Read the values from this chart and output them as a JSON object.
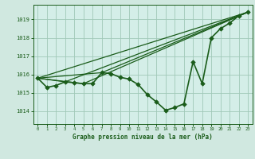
{
  "bg_color": "#d0e8e0",
  "plot_bg_color": "#d4eee8",
  "grid_color": "#a0c8b8",
  "line_color": "#1a5c1a",
  "title": "Graphe pression niveau de la mer (hPa)",
  "xlim": [
    -0.5,
    23.5
  ],
  "ylim": [
    1013.3,
    1019.8
  ],
  "yticks": [
    1014,
    1015,
    1016,
    1017,
    1018,
    1019
  ],
  "xticks": [
    0,
    1,
    2,
    3,
    4,
    5,
    6,
    7,
    8,
    9,
    10,
    11,
    12,
    13,
    14,
    15,
    16,
    17,
    18,
    19,
    20,
    21,
    22,
    23
  ],
  "series": [
    {
      "x": [
        0,
        1,
        2,
        3,
        4,
        5,
        6,
        7,
        8,
        9,
        10,
        11,
        12,
        13,
        14,
        15,
        16,
        17,
        18,
        19,
        20,
        21,
        22,
        23
      ],
      "y": [
        1015.8,
        1015.3,
        1015.4,
        1015.6,
        1015.55,
        1015.5,
        1015.5,
        1016.1,
        1016.05,
        1015.85,
        1015.75,
        1015.45,
        1014.9,
        1014.5,
        1014.05,
        1014.2,
        1014.4,
        1016.7,
        1015.5,
        1018.0,
        1018.5,
        1018.8,
        1019.2,
        1019.4
      ],
      "marker": "D",
      "markersize": 2.8,
      "linewidth": 1.2,
      "has_markers": true
    },
    {
      "x": [
        0,
        23
      ],
      "y": [
        1015.8,
        1019.4
      ],
      "marker": null,
      "linewidth": 0.9,
      "has_markers": false
    },
    {
      "x": [
        0,
        7,
        23
      ],
      "y": [
        1015.8,
        1016.1,
        1019.4
      ],
      "marker": null,
      "linewidth": 0.9,
      "has_markers": false
    },
    {
      "x": [
        0,
        5,
        23
      ],
      "y": [
        1015.8,
        1015.5,
        1019.4
      ],
      "marker": null,
      "linewidth": 0.9,
      "has_markers": false
    },
    {
      "x": [
        0,
        3,
        23
      ],
      "y": [
        1015.8,
        1015.6,
        1019.4
      ],
      "marker": null,
      "linewidth": 0.9,
      "has_markers": false
    }
  ]
}
